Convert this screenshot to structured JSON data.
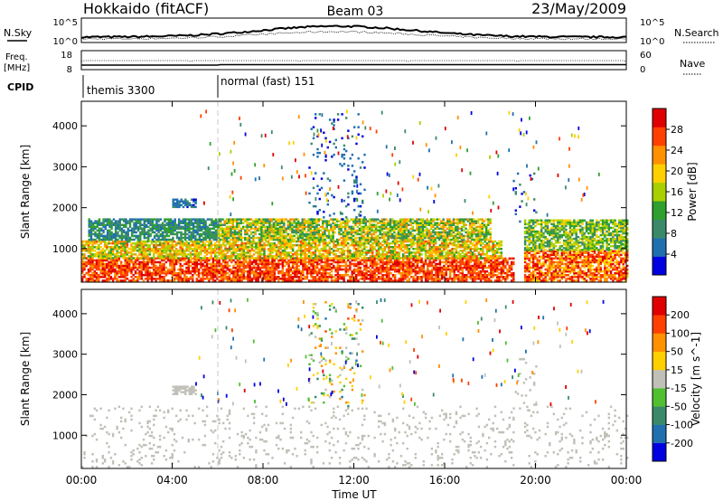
{
  "header": {
    "station": "Hokkaido (fitACF)",
    "beam": "Beam 03",
    "date": "23/May/2009"
  },
  "strips": {
    "nsky_label": "N.Sky",
    "nsearch_label": "N.Search",
    "freq_label_1": "Freq.",
    "freq_label_2": "[MHz]",
    "nave_label": "Nave",
    "cpid_label": "CPID",
    "nsky_ticks": [
      "10^5",
      "10^0"
    ],
    "nsearch_ticks": [
      "10^5",
      "10^0"
    ],
    "freq_ticks": [
      "18",
      "8"
    ],
    "nave_ticks": [
      "60",
      "0"
    ],
    "cpid_segments": [
      {
        "label": "themis 3300",
        "start_hour": 0
      },
      {
        "label": "normal (fast) 151",
        "start_hour": 6
      }
    ]
  },
  "chart_data": [
    {
      "type": "heatmap",
      "title": "",
      "xlabel": "Time UT",
      "ylabel": "Slant Range [km]",
      "xlim_hours": [
        0,
        24
      ],
      "ylim": [
        180,
        4600
      ],
      "x_ticks": [
        "00:00",
        "04:00",
        "08:00",
        "12:00",
        "16:00",
        "20:00",
        "00:00"
      ],
      "y_ticks": [
        1000,
        2000,
        3000,
        4000
      ],
      "colorbar_label": "Power [dB]",
      "colorbar_ticks": [
        4,
        8,
        12,
        16,
        20,
        24,
        28
      ],
      "colorbar_range": [
        0,
        32
      ],
      "colors": [
        "#0000e0",
        "#2070b0",
        "#3a8a6a",
        "#2da02d",
        "#a8d000",
        "#ffd000",
        "#ff9000",
        "#ff4000",
        "#e00000"
      ],
      "bands": [
        {
          "t0": 0.0,
          "t1": 19.0,
          "r0": 200,
          "r1": 750,
          "v0": 22,
          "v1": 32
        },
        {
          "t0": 0.0,
          "t1": 18.5,
          "r0": 750,
          "r1": 1200,
          "v0": 12,
          "v1": 26
        },
        {
          "t0": 0.3,
          "t1": 6.0,
          "r0": 1200,
          "r1": 1700,
          "v0": 4,
          "v1": 14
        },
        {
          "t0": 6.0,
          "t1": 18.0,
          "r0": 1200,
          "r1": 1700,
          "v0": 8,
          "v1": 24
        },
        {
          "t0": 19.5,
          "t1": 24.0,
          "r0": 200,
          "r1": 950,
          "v0": 18,
          "v1": 32
        },
        {
          "t0": 19.5,
          "t1": 24.0,
          "r0": 950,
          "r1": 1700,
          "v0": 8,
          "v1": 20
        },
        {
          "t0": 4.0,
          "t1": 5.0,
          "r0": 2000,
          "r1": 2200,
          "v0": 3,
          "v1": 8
        },
        {
          "t0": 10.0,
          "t1": 12.5,
          "r0": 1700,
          "r1": 4300,
          "v0": 2,
          "v1": 8
        },
        {
          "t0": 19.0,
          "t1": 20.0,
          "r0": 1600,
          "r1": 2900,
          "v0": 2,
          "v1": 10
        }
      ]
    },
    {
      "type": "heatmap",
      "title": "",
      "xlabel": "Time UT",
      "ylabel": "Slant Range [km]",
      "xlim_hours": [
        0,
        24
      ],
      "ylim": [
        180,
        4600
      ],
      "x_ticks": [
        "00:00",
        "04:00",
        "08:00",
        "12:00",
        "16:00",
        "20:00",
        "00:00"
      ],
      "y_ticks": [
        1000,
        2000,
        3000,
        4000
      ],
      "colorbar_label": "Velocity [m s^-1]",
      "colorbar_ticks": [
        "200",
        "100",
        "50",
        "15",
        "-15",
        "-50",
        "-100",
        "-200"
      ],
      "colorbar_range": [
        -250,
        250
      ],
      "colors": [
        "#0000e0",
        "#2070b0",
        "#3a8a6a",
        "#50c030",
        "#c0c0b8",
        "#ffd000",
        "#ff9000",
        "#ff4000",
        "#e00000"
      ],
      "bands": [
        {
          "t0": 0.0,
          "t1": 19.0,
          "r0": 200,
          "r1": 1700,
          "v0": -12,
          "v1": 12
        },
        {
          "t0": 19.5,
          "t1": 24.0,
          "r0": 200,
          "r1": 1700,
          "v0": -12,
          "v1": 12
        },
        {
          "t0": 4.0,
          "t1": 5.0,
          "r0": 2000,
          "r1": 2200,
          "v0": -10,
          "v1": 10
        },
        {
          "t0": 10.0,
          "t1": 12.5,
          "r0": 1700,
          "r1": 4300,
          "v0": -150,
          "v1": 150
        },
        {
          "t0": 19.0,
          "t1": 20.0,
          "r0": 1600,
          "r1": 2900,
          "v0": -20,
          "v1": 20
        }
      ]
    }
  ]
}
